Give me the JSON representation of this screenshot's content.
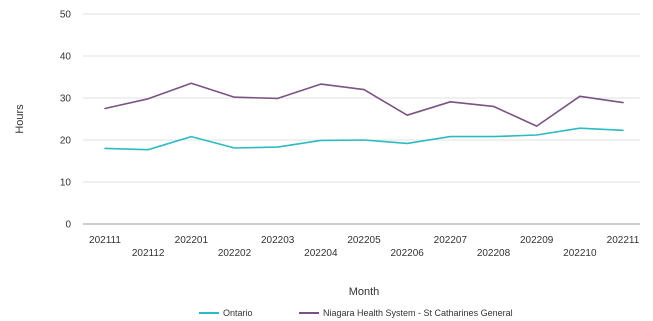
{
  "chart_data": {
    "type": "line",
    "title": "",
    "xlabel": "Month",
    "ylabel": "Hours",
    "ylim": [
      0,
      50
    ],
    "yticks": [
      0,
      10,
      20,
      30,
      40,
      50
    ],
    "grid": true,
    "legend_position": "bottom",
    "categories": [
      "202111",
      "202112",
      "202201",
      "202202",
      "202203",
      "202204",
      "202205",
      "202206",
      "202207",
      "202208",
      "202209",
      "202210",
      "202211"
    ],
    "series": [
      {
        "name": "Ontario",
        "color": "#2bbcc2",
        "values": [
          18.0,
          17.7,
          20.8,
          18.1,
          18.3,
          19.9,
          20.0,
          19.2,
          20.8,
          20.8,
          21.2,
          22.8,
          22.3
        ]
      },
      {
        "name": "Niagara Health System - St Catharines General",
        "color": "#7b5383",
        "values": [
          27.5,
          29.8,
          33.5,
          30.2,
          29.9,
          33.3,
          32.0,
          25.9,
          29.1,
          28.0,
          23.3,
          30.4,
          28.9
        ]
      }
    ]
  }
}
